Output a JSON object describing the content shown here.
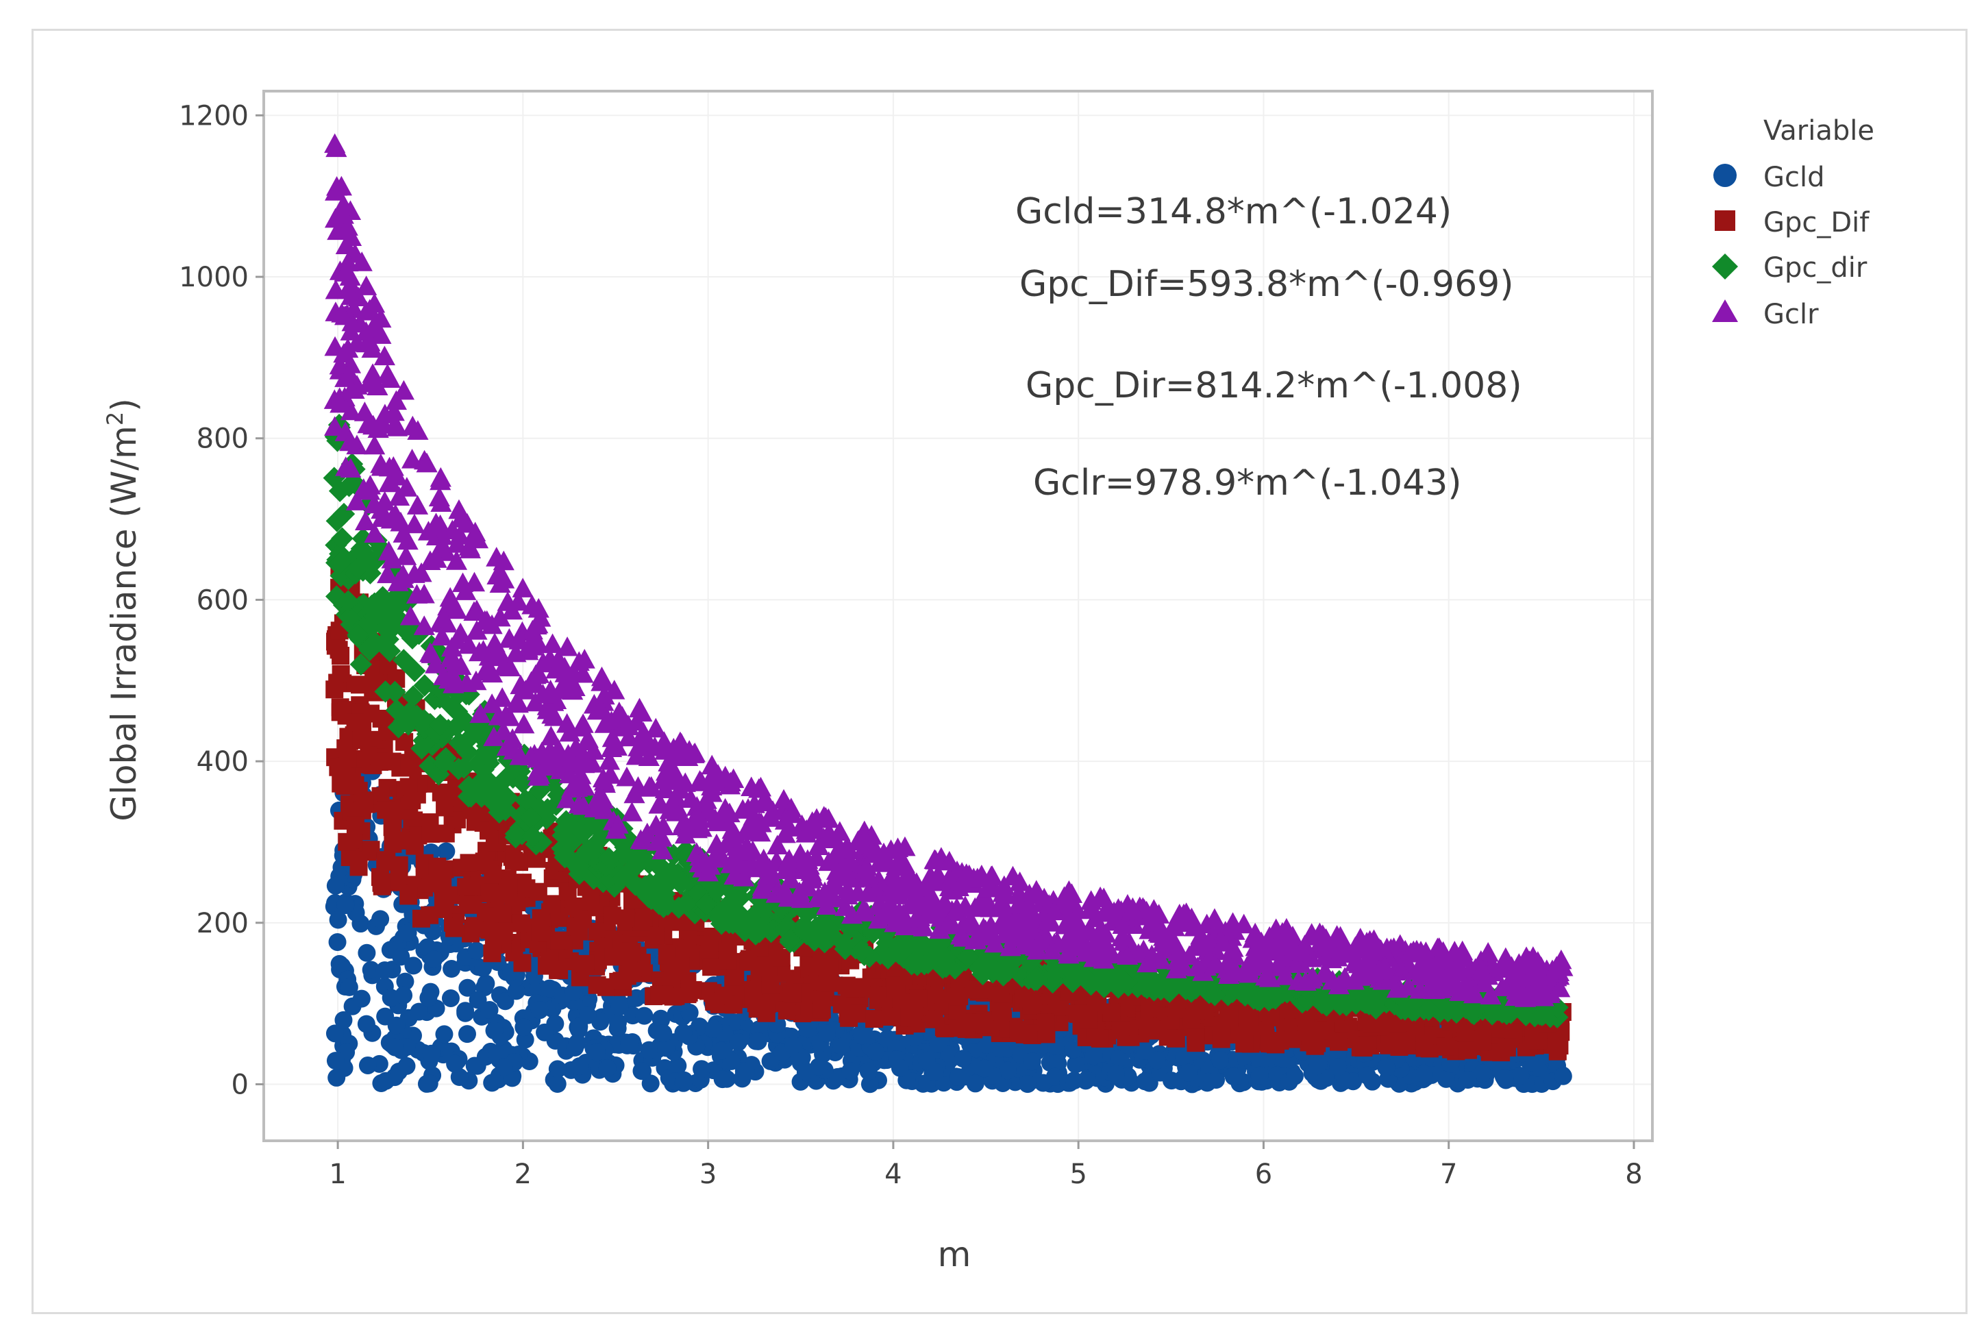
{
  "chart_data": {
    "type": "scatter",
    "title": "",
    "xlabel": "m",
    "ylabel": "Global Irradiance (W/m",
    "ylabel_superscript": "2",
    "ylabel_suffix": ")",
    "xlim": [
      0.6,
      8.1
    ],
    "ylim": [
      -70,
      1230
    ],
    "xticks": [
      1,
      2,
      3,
      4,
      5,
      6,
      7,
      8
    ],
    "yticks": [
      0,
      200,
      400,
      600,
      800,
      1000,
      1200
    ],
    "grid": true,
    "legend": {
      "title": "Variable",
      "placement": "right"
    },
    "series": [
      {
        "name": "Gcld",
        "marker": "circle",
        "color": "#0d4f9c",
        "coef": 314.8,
        "exp": -1.024
      },
      {
        "name": "Gpc_Dif",
        "marker": "square",
        "color": "#9b1414",
        "coef": 593.8,
        "exp": -0.969
      },
      {
        "name": "Gpc_dir",
        "marker": "diamond",
        "color": "#118a2a",
        "coef": 814.2,
        "exp": -1.008
      },
      {
        "name": "Gclr",
        "marker": "triangle",
        "color": "#8a16b0",
        "coef": 978.9,
        "exp": -1.043
      }
    ],
    "annotations": [
      "Gcld=314.8*m^(-1.024)",
      "Gpc_Dif=593.8*m^(-0.969)",
      "Gpc_Dir=814.2*m^(-1.008)",
      "Gclr=978.9*m^(-1.043)"
    ],
    "x_range_data": [
      0.98,
      7.62
    ]
  }
}
